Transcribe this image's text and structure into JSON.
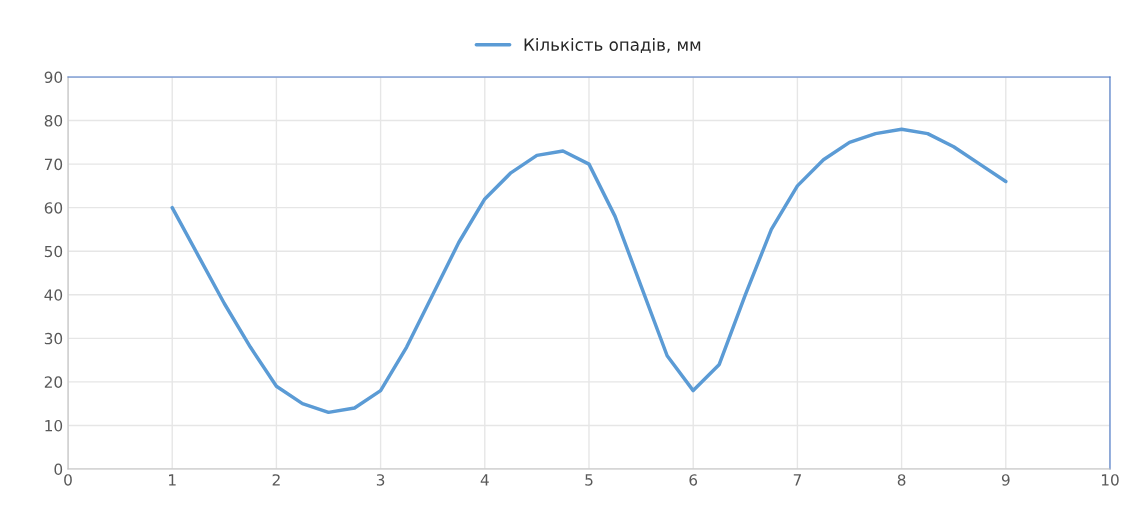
{
  "chart_data": {
    "type": "line",
    "x": [
      1,
      1.25,
      1.5,
      1.75,
      2,
      2.25,
      2.5,
      2.75,
      3,
      3.25,
      3.5,
      3.75,
      4,
      4.25,
      4.5,
      4.75,
      5,
      5.25,
      5.5,
      5.75,
      6,
      6.25,
      6.5,
      6.75,
      7,
      7.25,
      7.5,
      7.75,
      8,
      8.25,
      8.5,
      8.75,
      9
    ],
    "series": [
      {
        "name": "Кількість опадів, мм",
        "color": "#5b9bd5",
        "values": [
          60,
          49,
          38,
          28,
          19,
          15,
          13,
          14,
          18,
          28,
          40,
          52,
          62,
          68,
          72,
          73,
          70,
          58,
          42,
          26,
          18,
          24,
          40,
          55,
          65,
          71,
          75,
          77,
          78,
          77,
          74,
          70,
          66
        ]
      }
    ],
    "xlim": [
      0,
      10
    ],
    "xticks": [
      0,
      1,
      2,
      3,
      4,
      5,
      6,
      7,
      8,
      9,
      10
    ],
    "ylim": [
      0,
      90
    ],
    "yticks": [
      0,
      10,
      20,
      30,
      40,
      50,
      60,
      70,
      80,
      90
    ],
    "grid": true,
    "legend": "top",
    "marker": "none",
    "line_style": "solid"
  }
}
